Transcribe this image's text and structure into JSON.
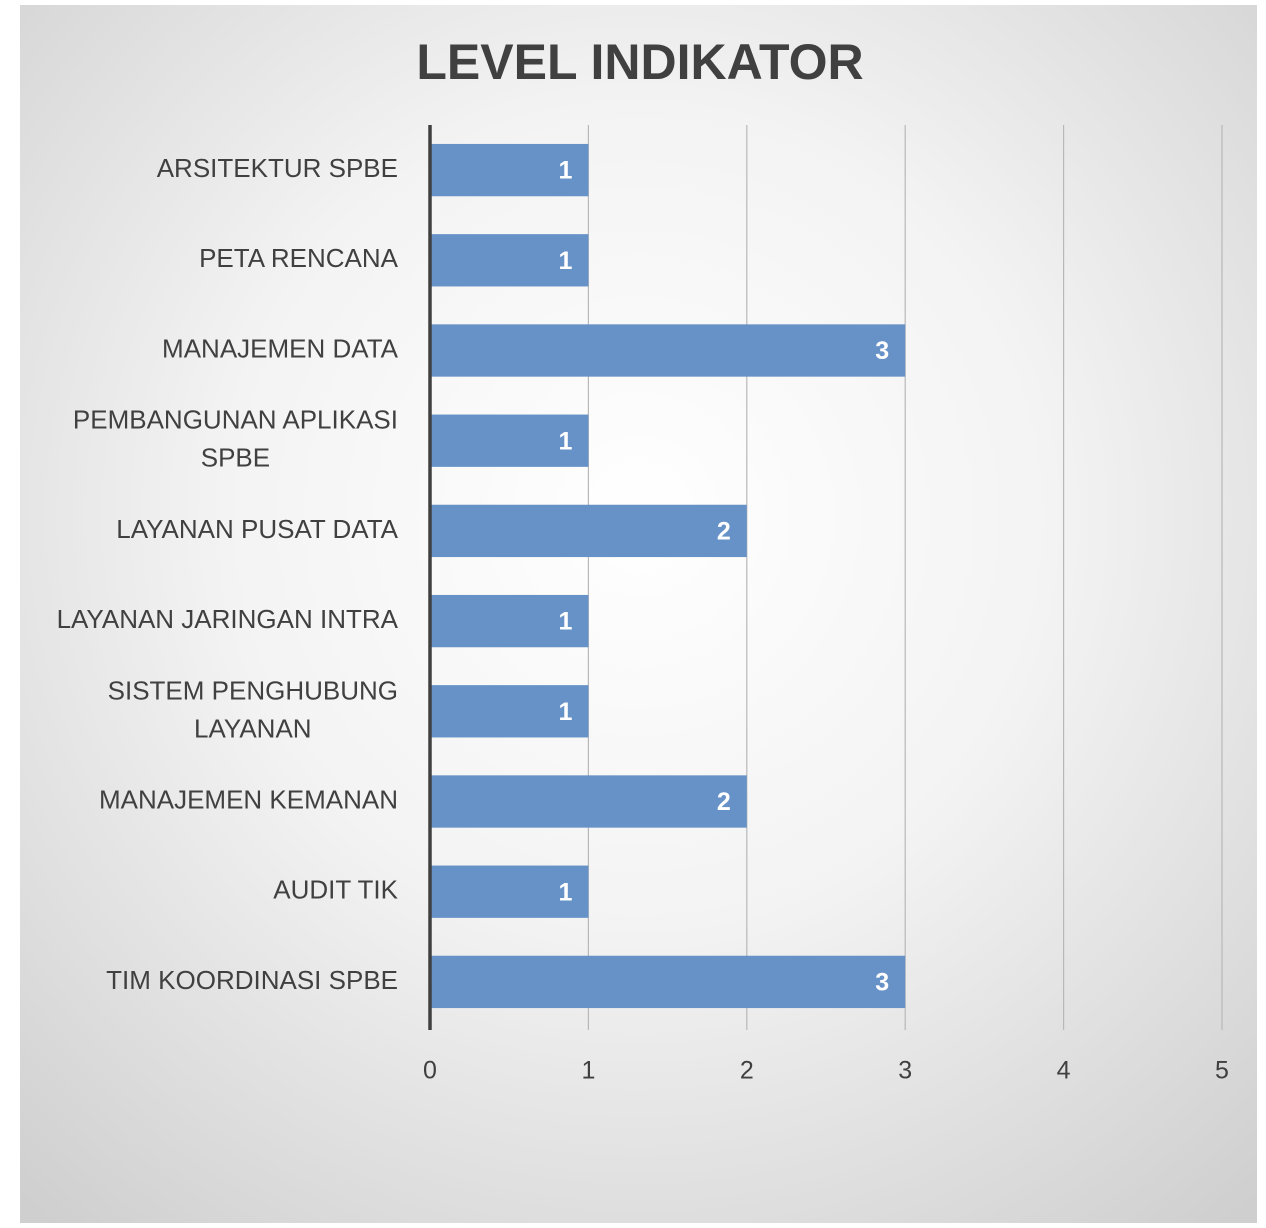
{
  "chart_data": {
    "type": "barh",
    "title": "LEVEL INDIKATOR",
    "categories": [
      "ARSITEKTUR SPBE",
      "PETA RENCANA",
      "MANAJEMEN DATA",
      "PEMBANGUNAN APLIKASI SPBE",
      "LAYANAN PUSAT DATA",
      "LAYANAN JARINGAN INTRA",
      "SISTEM PENGHUBUNG LAYANAN",
      "MANAJEMEN KEMANAN",
      "AUDIT TIK",
      "TIM KOORDINASI SPBE"
    ],
    "values": [
      1,
      1,
      3,
      1,
      2,
      1,
      1,
      2,
      1,
      3
    ],
    "color": "#6792c7",
    "xlim": [
      0,
      5
    ],
    "xticks": [
      0,
      1,
      2,
      3,
      4,
      5
    ],
    "grid": true
  }
}
